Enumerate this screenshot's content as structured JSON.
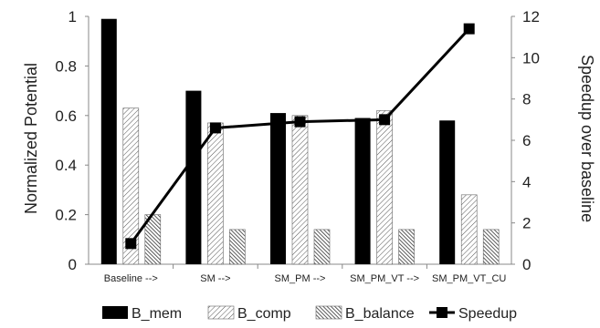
{
  "chart_data": {
    "type": "bar",
    "categories": [
      "Baseline -->",
      "SM -->",
      "SM_PM -->",
      "SM_PM_VT -->",
      "SM_PM_VT_CU"
    ],
    "series": [
      {
        "name": "B_mem",
        "kind": "bar",
        "axis": "left",
        "color": "#000000",
        "pattern": "solid",
        "values": [
          0.99,
          0.7,
          0.61,
          0.59,
          0.58
        ]
      },
      {
        "name": "B_comp",
        "kind": "bar",
        "axis": "left",
        "color": "#ffffff",
        "pattern": "fine-diagonal-hatch",
        "values": [
          0.63,
          0.57,
          0.6,
          0.62,
          0.28
        ]
      },
      {
        "name": "B_balance",
        "kind": "bar",
        "axis": "left",
        "color": "#ffffff",
        "pattern": "dense-diagonal-hatch",
        "values": [
          0.2,
          0.14,
          0.14,
          0.14,
          0.14
        ]
      },
      {
        "name": "Speedup",
        "kind": "line",
        "axis": "right",
        "color": "#000000",
        "marker": "square",
        "values": [
          1.0,
          6.6,
          6.9,
          7.0,
          11.4
        ]
      }
    ],
    "ylabel": "Normalized Potential",
    "y2label": "Speedup over baseline",
    "ylim": [
      0,
      1
    ],
    "y2lim": [
      0,
      12
    ],
    "yticks": [
      "0",
      "0.2",
      "0.4",
      "0.6",
      "0.8",
      "1"
    ],
    "y2ticks": [
      "0",
      "2",
      "4",
      "6",
      "8",
      "10",
      "12"
    ],
    "legend_position": "bottom",
    "grid": false
  }
}
